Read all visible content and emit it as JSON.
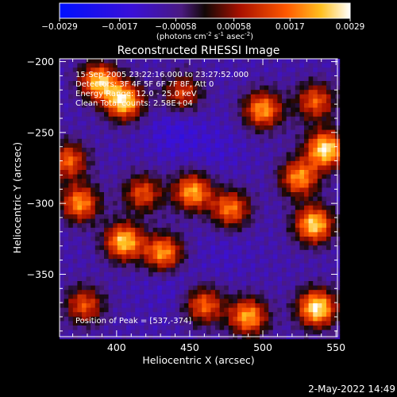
{
  "colorbar": {
    "ticks": [
      "-0.0029",
      "-0.0017",
      "-0.00058",
      "0.00058",
      "0.0017",
      "0.0029"
    ],
    "unit_main": "(photons cm",
    "unit_sup1": "-2",
    "unit_mid": " s",
    "unit_sup2": "-1",
    "unit_end": " asec",
    "unit_sup3": "-2",
    "unit_close": ")"
  },
  "plot": {
    "title": "Reconstructed RHESSI Image",
    "info_lines": [
      "15-Sep-2005 23:22:16.000 to 23:27:52.000",
      "Detectors: 3F 4F 5F 6F 7F 8F, Att 0",
      "Energy Range: 12.0 - 25.0 keV",
      "Clean     Total counts: 2.58E+04"
    ],
    "peak_label": "Position of Peak = [537,-374]"
  },
  "footer": {
    "date": "2-May-2022 14:49"
  },
  "chart_data": {
    "type": "heatmap",
    "title": "Reconstructed RHESSI Image",
    "xlabel": "Heliocentric X (arcsec)",
    "ylabel": "Heliocentric Y (arcsec)",
    "xlim": [
      361,
      551
    ],
    "ylim": [
      -394,
      -198
    ],
    "x_ticks": [
      400,
      450,
      500,
      550
    ],
    "y_ticks": [
      -200,
      -250,
      -300,
      -350
    ],
    "colorbar_range": [
      -0.0029,
      0.0029
    ],
    "colorbar_ticks": [
      -0.0029,
      -0.0017,
      -0.00058,
      0.00058,
      0.0017,
      0.0029
    ],
    "colormap": "rhessi-blue-purple-red-yellow-white",
    "peak_position": [
      537,
      -374
    ],
    "bright_regions": [
      {
        "x": 388,
        "y": -214,
        "value": 0.0024
      },
      {
        "x": 405,
        "y": -228,
        "value": 0.0027
      },
      {
        "x": 367,
        "y": -270,
        "value": 0.0016
      },
      {
        "x": 375,
        "y": -300,
        "value": 0.002
      },
      {
        "x": 405,
        "y": -327,
        "value": 0.0025
      },
      {
        "x": 432,
        "y": -335,
        "value": 0.0021
      },
      {
        "x": 418,
        "y": -293,
        "value": 0.0014
      },
      {
        "x": 452,
        "y": -292,
        "value": 0.0022
      },
      {
        "x": 478,
        "y": -304,
        "value": 0.0018
      },
      {
        "x": 500,
        "y": -234,
        "value": 0.0021
      },
      {
        "x": 536,
        "y": -228,
        "value": 0.0015
      },
      {
        "x": 543,
        "y": -262,
        "value": 0.0028
      },
      {
        "x": 525,
        "y": -282,
        "value": 0.002
      },
      {
        "x": 535,
        "y": -315,
        "value": 0.0026
      },
      {
        "x": 460,
        "y": -372,
        "value": 0.0016
      },
      {
        "x": 490,
        "y": -380,
        "value": 0.0022
      },
      {
        "x": 537,
        "y": -374,
        "value": 0.0029
      },
      {
        "x": 378,
        "y": -372,
        "value": 0.0014
      },
      {
        "x": 445,
        "y": -222,
        "value": 0.0012
      }
    ],
    "dark_regions": [
      {
        "x": 440,
        "y": -250,
        "value": -0.0014
      },
      {
        "x": 468,
        "y": -262,
        "value": -0.0012
      },
      {
        "x": 475,
        "y": -335,
        "value": -0.0011
      },
      {
        "x": 437,
        "y": -355,
        "value": -0.0012
      },
      {
        "x": 415,
        "y": -260,
        "value": -0.0009
      },
      {
        "x": 527,
        "y": -250,
        "value": -0.0008
      },
      {
        "x": 510,
        "y": -345,
        "value": -0.0009
      }
    ]
  }
}
